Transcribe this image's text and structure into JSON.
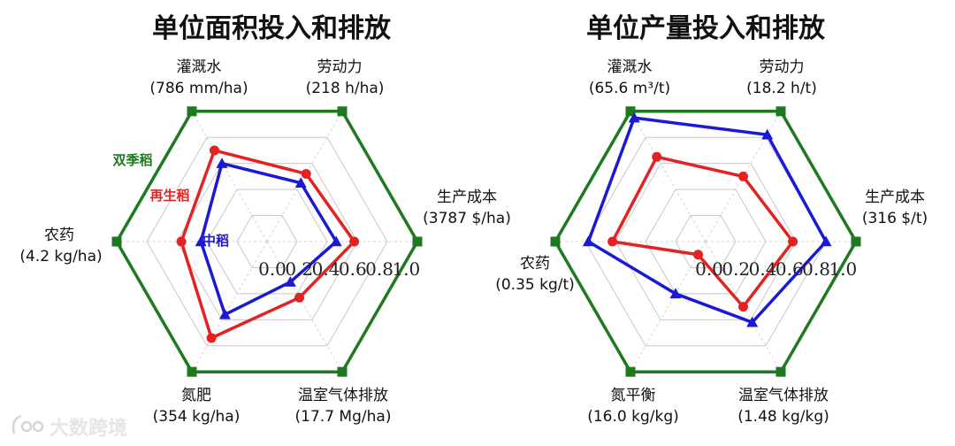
{
  "chart_data": [
    {
      "type": "radar",
      "title": "单位面积投入和排放",
      "axes": [
        {
          "name": "灌溉水",
          "unit": "(786 mm/ha)"
        },
        {
          "name": "劳动力",
          "unit": "(218 h/ha)"
        },
        {
          "name": "生产成本",
          "unit": "(3787 $/ha)"
        },
        {
          "name": "温室气体排放",
          "unit": "(17.7 Mg/ha)"
        },
        {
          "name": "氮肥",
          "unit": "(354 kg/ha)"
        },
        {
          "name": "农药",
          "unit": "(4.2 kg/ha)"
        }
      ],
      "ticks": [
        "0.0",
        "0.2",
        "0.4",
        "0.6",
        "0.8",
        "1.0"
      ],
      "range": [
        0,
        1
      ],
      "grid": true,
      "series": [
        {
          "name": "双季稻",
          "color": "#1f7a1f",
          "marker": "square",
          "values": [
            1.0,
            1.0,
            1.0,
            1.0,
            1.0,
            1.0
          ]
        },
        {
          "name": "再生稻",
          "color": "#e32222",
          "marker": "circle",
          "values": [
            0.7,
            0.52,
            0.58,
            0.43,
            0.74,
            0.57
          ]
        },
        {
          "name": "中稻",
          "color": "#1a1ad6",
          "marker": "triangle",
          "values": [
            0.6,
            0.45,
            0.46,
            0.31,
            0.56,
            0.44
          ]
        }
      ]
    },
    {
      "type": "radar",
      "title": "单位产量投入和排放",
      "axes": [
        {
          "name": "灌溉水",
          "unit": "(65.6 m³/t)"
        },
        {
          "name": "劳动力",
          "unit": "(18.2 h/t)"
        },
        {
          "name": "生产成本",
          "unit": "(316 $/t)"
        },
        {
          "name": "温室气体排放",
          "unit": "(1.48 kg/kg)"
        },
        {
          "name": "氮平衡",
          "unit": "(16.0 kg/kg)"
        },
        {
          "name": "农药",
          "unit": "(0.35 kg/t)"
        }
      ],
      "ticks": [
        "0.0",
        "0.2",
        "0.4",
        "0.6",
        "0.8",
        "1.0"
      ],
      "range": [
        0,
        1
      ],
      "grid": true,
      "series": [
        {
          "name": "双季稻",
          "color": "#1f7a1f",
          "marker": "square",
          "values": [
            1.0,
            1.0,
            1.0,
            1.0,
            1.0,
            1.0
          ]
        },
        {
          "name": "再生稻",
          "color": "#e32222",
          "marker": "circle",
          "values": [
            0.65,
            0.5,
            0.58,
            0.5,
            0.1,
            0.62
          ]
        },
        {
          "name": "中稻",
          "color": "#1a1ad6",
          "marker": "triangle",
          "values": [
            0.95,
            0.82,
            0.8,
            0.62,
            0.4,
            0.78
          ]
        }
      ]
    }
  ],
  "series_labels": {
    "double": "双季稻",
    "ratoon": "再生稻",
    "middle": "中稻"
  },
  "watermark": {
    "text": "大数跨境"
  }
}
